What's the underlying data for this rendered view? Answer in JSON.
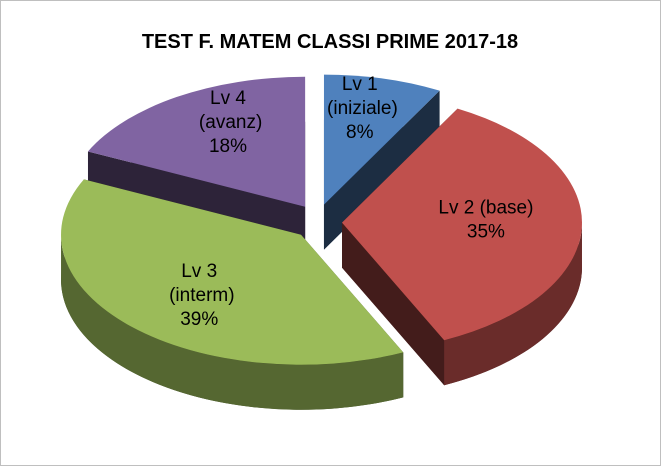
{
  "chart_data": {
    "type": "pie",
    "title": "TEST F. MATEM CLASSI PRIME 2017-18",
    "categories": [
      "Lv 1 (iniziale)",
      "Lv 2 (base)",
      "Lv 3 (interm)",
      "Lv 4 (avanz)"
    ],
    "values": [
      8,
      35,
      39,
      18
    ],
    "value_labels": [
      "8%",
      "35%",
      "39%",
      "18%"
    ],
    "colors": [
      "#4f81bd",
      "#c0504d",
      "#9bbb59",
      "#8064a2"
    ],
    "three_d": true,
    "exploded": true
  }
}
